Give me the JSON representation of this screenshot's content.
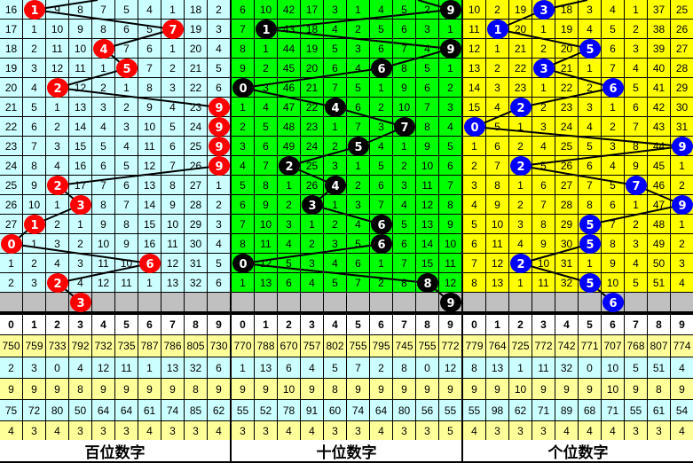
{
  "colors": {
    "hundreds_bg": "#ccffff",
    "tens_bg": "#00ff00",
    "units_bg": "#ffff00",
    "hundreds_ball": "#ff0000",
    "tens_ball": "#000000",
    "units_ball": "#0000ff",
    "stat_yellow": "#ffff99",
    "stat_cyan": "#ccffff",
    "pending_row": "#c0c0c0"
  },
  "panels": [
    {
      "label": "百位数字",
      "hits": [
        1,
        7,
        4,
        5,
        2,
        9,
        9,
        9,
        9,
        2,
        3,
        1,
        0,
        6,
        2
      ],
      "next": 3,
      "rows": [
        [
          16,
          1,
          9,
          8,
          7,
          5,
          4,
          1,
          18,
          2
        ],
        [
          17,
          1,
          10,
          9,
          8,
          6,
          5,
          7,
          19,
          3
        ],
        [
          18,
          2,
          11,
          10,
          4,
          7,
          6,
          1,
          20,
          4
        ],
        [
          19,
          3,
          12,
          11,
          1,
          5,
          7,
          2,
          21,
          5
        ],
        [
          20,
          4,
          2,
          12,
          2,
          1,
          8,
          3,
          22,
          6
        ],
        [
          21,
          5,
          1,
          13,
          3,
          2,
          9,
          4,
          23,
          9
        ],
        [
          22,
          6,
          2,
          14,
          4,
          3,
          10,
          5,
          24,
          9
        ],
        [
          23,
          7,
          3,
          15,
          5,
          4,
          11,
          6,
          25,
          9
        ],
        [
          24,
          8,
          4,
          16,
          6,
          5,
          12,
          7,
          26,
          9
        ],
        [
          25,
          9,
          2,
          17,
          7,
          6,
          13,
          8,
          27,
          1
        ],
        [
          26,
          10,
          1,
          3,
          8,
          7,
          14,
          9,
          28,
          2
        ],
        [
          27,
          1,
          2,
          1,
          9,
          8,
          15,
          10,
          29,
          3
        ],
        [
          0,
          1,
          3,
          2,
          10,
          9,
          16,
          11,
          30,
          4
        ],
        [
          1,
          2,
          4,
          3,
          11,
          10,
          6,
          12,
          31,
          5
        ],
        [
          2,
          3,
          2,
          4,
          12,
          11,
          1,
          13,
          32,
          6
        ]
      ],
      "stats": [
        [
          750,
          759,
          733,
          792,
          732,
          735,
          787,
          786,
          805,
          730
        ],
        [
          2,
          3,
          0,
          4,
          12,
          11,
          1,
          13,
          32,
          6
        ],
        [
          9,
          9,
          9,
          8,
          9,
          9,
          9,
          9,
          8,
          9
        ],
        [
          75,
          72,
          80,
          50,
          64,
          64,
          61,
          74,
          85,
          62
        ],
        [
          4,
          3,
          4,
          3,
          3,
          3,
          4,
          3,
          3,
          4
        ]
      ]
    },
    {
      "label": "十位数字",
      "hits": [
        9,
        1,
        9,
        6,
        0,
        4,
        7,
        5,
        2,
        4,
        3,
        6,
        6,
        0,
        8
      ],
      "next": 9,
      "rows": [
        [
          6,
          10,
          42,
          17,
          3,
          1,
          4,
          5,
          2,
          9
        ],
        [
          7,
          1,
          43,
          18,
          4,
          2,
          5,
          6,
          3,
          1
        ],
        [
          8,
          1,
          44,
          19,
          5,
          3,
          6,
          7,
          4,
          9
        ],
        [
          9,
          2,
          45,
          20,
          6,
          4,
          6,
          8,
          5,
          1
        ],
        [
          0,
          3,
          46,
          21,
          7,
          5,
          1,
          9,
          6,
          2
        ],
        [
          1,
          4,
          47,
          22,
          4,
          6,
          2,
          10,
          7,
          3
        ],
        [
          2,
          5,
          48,
          23,
          1,
          7,
          3,
          7,
          8,
          4
        ],
        [
          3,
          6,
          49,
          24,
          2,
          5,
          4,
          1,
          9,
          5
        ],
        [
          4,
          7,
          2,
          25,
          3,
          1,
          5,
          2,
          10,
          6
        ],
        [
          5,
          8,
          1,
          26,
          4,
          2,
          6,
          3,
          11,
          7
        ],
        [
          6,
          9,
          2,
          3,
          1,
          3,
          7,
          4,
          12,
          8
        ],
        [
          7,
          10,
          3,
          1,
          2,
          4,
          6,
          5,
          13,
          9
        ],
        [
          8,
          11,
          4,
          2,
          3,
          5,
          6,
          6,
          14,
          10
        ],
        [
          0,
          12,
          5,
          3,
          4,
          6,
          1,
          7,
          15,
          11
        ],
        [
          1,
          13,
          6,
          4,
          5,
          7,
          2,
          8,
          8,
          12
        ]
      ],
      "stats": [
        [
          770,
          788,
          670,
          757,
          802,
          755,
          795,
          745,
          755,
          772
        ],
        [
          1,
          13,
          6,
          4,
          5,
          7,
          2,
          8,
          0,
          12
        ],
        [
          9,
          9,
          10,
          9,
          8,
          9,
          9,
          9,
          9,
          9
        ],
        [
          55,
          52,
          78,
          91,
          60,
          74,
          64,
          80,
          56,
          55
        ],
        [
          3,
          3,
          4,
          4,
          3,
          3,
          4,
          3,
          3,
          5
        ]
      ]
    },
    {
      "label": "个位数字",
      "hits": [
        3,
        1,
        5,
        3,
        6,
        2,
        0,
        9,
        2,
        7,
        9,
        5,
        5,
        2,
        5
      ],
      "next": 6,
      "rows": [
        [
          10,
          2,
          19,
          3,
          18,
          3,
          4,
          1,
          37,
          25
        ],
        [
          11,
          1,
          20,
          1,
          19,
          4,
          5,
          2,
          38,
          26
        ],
        [
          12,
          1,
          21,
          2,
          20,
          5,
          6,
          3,
          39,
          27
        ],
        [
          13,
          2,
          22,
          3,
          21,
          1,
          7,
          4,
          40,
          28
        ],
        [
          14,
          3,
          23,
          1,
          22,
          2,
          6,
          5,
          41,
          29
        ],
        [
          15,
          4,
          2,
          2,
          23,
          3,
          1,
          6,
          42,
          30
        ],
        [
          0,
          5,
          1,
          3,
          24,
          4,
          2,
          7,
          43,
          31
        ],
        [
          1,
          6,
          2,
          4,
          25,
          5,
          3,
          8,
          44,
          9
        ],
        [
          2,
          7,
          2,
          5,
          26,
          6,
          4,
          9,
          45,
          1
        ],
        [
          3,
          8,
          1,
          6,
          27,
          7,
          5,
          7,
          46,
          2
        ],
        [
          4,
          9,
          2,
          7,
          28,
          8,
          6,
          1,
          47,
          9
        ],
        [
          5,
          10,
          3,
          8,
          29,
          5,
          7,
          2,
          48,
          1
        ],
        [
          6,
          11,
          4,
          9,
          30,
          5,
          8,
          3,
          49,
          2
        ],
        [
          7,
          12,
          2,
          10,
          31,
          1,
          9,
          4,
          50,
          3
        ],
        [
          8,
          13,
          1,
          11,
          32,
          5,
          10,
          5,
          51,
          4
        ]
      ],
      "stats": [
        [
          779,
          764,
          725,
          772,
          742,
          771,
          707,
          768,
          807,
          774
        ],
        [
          8,
          13,
          1,
          11,
          32,
          0,
          10,
          5,
          51,
          4
        ],
        [
          9,
          9,
          10,
          9,
          9,
          9,
          10,
          9,
          8,
          9
        ],
        [
          55,
          98,
          62,
          71,
          89,
          68,
          71,
          55,
          61,
          54
        ],
        [
          4,
          3,
          3,
          3,
          4,
          4,
          4,
          3,
          3,
          4
        ]
      ]
    }
  ],
  "header_digits": [
    "0",
    "1",
    "2",
    "3",
    "4",
    "5",
    "6",
    "7",
    "8",
    "9"
  ]
}
